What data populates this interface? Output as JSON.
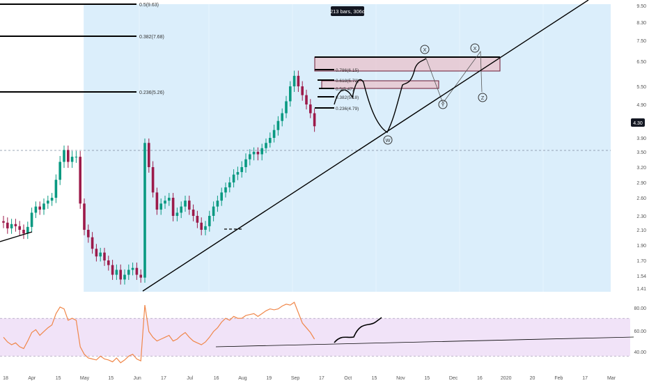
{
  "colors": {
    "up": "#089981",
    "down": "#9c1a4a",
    "range_fill": "#dbeefb",
    "zone_fill": "#e8c4ce",
    "zone_stroke": "#6a1830",
    "rsi_line": "#f0874a",
    "rsi_band": "#f1e3f8",
    "axis_text": "#555555",
    "price_tag": "#131722",
    "current_line": "#7f8aa0"
  },
  "chart_data": [
    {
      "type": "candlestick",
      "price_axis": {
        "scale": "log",
        "ticks": [
          "9.50",
          "8.30",
          "7.50",
          "6.50",
          "5.50",
          "4.90",
          "4.30",
          "3.90",
          "3.50",
          "3.20",
          "2.90",
          "2.60",
          "2.30",
          "2.10",
          "1.90",
          "1.70",
          "1.54",
          "1.41"
        ],
        "current_price": "4.30",
        "current_level": 3.55
      },
      "time_axis": {
        "labels": [
          "18",
          "Apr",
          "15",
          "May",
          "15",
          "Jun",
          "17",
          "Jul",
          "16",
          "Aug",
          "19",
          "Sep",
          "17",
          "Oct",
          "15",
          "Nov",
          "15",
          "Dec",
          "16",
          "2020",
          "20",
          "Feb",
          "17",
          "Mar"
        ]
      },
      "range_label": "213 bars, 306d",
      "fib_levels": [
        {
          "label": "0.5(9.63)",
          "price": 9.63
        },
        {
          "label": "0.382(7.68)",
          "price": 7.68
        },
        {
          "label": "0.236(5.26)",
          "price": 5.26
        }
      ],
      "fib_retracements": [
        "0.786(6.15)",
        "0.618(5.72)",
        "0.5(5.47)",
        "0.382(5.18)",
        "0.236(4.79)"
      ],
      "wave_labels": [
        "X",
        "X",
        "W",
        "Y",
        "Z"
      ],
      "trendline": {
        "from": {
          "bar": 35,
          "price": 1.4
        },
        "to": {
          "bar": 150,
          "price": 9.8
        }
      },
      "closes": [
        2.2,
        2.12,
        2.18,
        2.15,
        2.1,
        2.05,
        2.14,
        2.35,
        2.45,
        2.4,
        2.5,
        2.55,
        2.6,
        2.95,
        3.3,
        3.55,
        3.3,
        3.4,
        3.4,
        2.5,
        2.1,
        2.0,
        1.85,
        1.75,
        1.8,
        1.7,
        1.65,
        1.55,
        1.6,
        1.5,
        1.55,
        1.6,
        1.62,
        1.55,
        1.52,
        3.75,
        3.2,
        2.7,
        2.4,
        2.5,
        2.55,
        2.6,
        2.3,
        2.35,
        2.45,
        2.55,
        2.4,
        2.3,
        2.2,
        2.1,
        2.15,
        2.3,
        2.45,
        2.55,
        2.7,
        2.8,
        2.9,
        3.05,
        3.1,
        3.2,
        3.35,
        3.45,
        3.5,
        3.45,
        3.6,
        3.75,
        3.9,
        4.1,
        4.35,
        4.6,
        5.0,
        5.5,
        5.9,
        5.5,
        5.2,
        4.9,
        4.6,
        4.2
      ],
      "rsi": {
        "ticks": [
          "80.00",
          "60.00",
          "40.00"
        ],
        "band": [
          30,
          70
        ],
        "values": [
          50,
          45,
          42,
          44,
          40,
          38,
          46,
          55,
          58,
          52,
          56,
          60,
          63,
          75,
          82,
          80,
          68,
          70,
          68,
          40,
          32,
          28,
          27,
          26,
          30,
          27,
          26,
          24,
          28,
          23,
          26,
          30,
          32,
          27,
          25,
          84,
          56,
          50,
          46,
          48,
          50,
          52,
          46,
          48,
          52,
          55,
          50,
          46,
          44,
          42,
          45,
          50,
          56,
          60,
          66,
          70,
          68,
          72,
          70,
          70,
          73,
          74,
          75,
          72,
          75,
          78,
          80,
          79,
          80,
          83,
          85,
          84,
          87,
          76,
          65,
          60,
          55,
          48
        ]
      }
    }
  ]
}
